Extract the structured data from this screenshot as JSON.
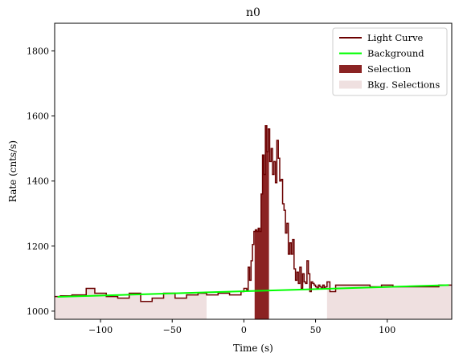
{
  "chart_data": {
    "type": "line",
    "title": "n0",
    "xlabel": "Time (s)",
    "ylabel": "Rate (cnts/s)",
    "xlim": [
      -132,
      145
    ],
    "ylim": [
      975,
      1885
    ],
    "xticks": [
      -100,
      -50,
      0,
      50,
      100
    ],
    "xtick_labels": [
      "−100",
      "−50",
      "0",
      "50",
      "100"
    ],
    "yticks": [
      1000,
      1200,
      1400,
      1600,
      1800
    ],
    "ytick_labels": [
      "1000",
      "1200",
      "1400",
      "1600",
      "1800"
    ],
    "grid": false,
    "legend_position": "top-right",
    "legend": [
      {
        "label": "Light Curve",
        "kind": "line",
        "color": "#6b0000"
      },
      {
        "label": "Background",
        "kind": "line",
        "color": "#00ff00"
      },
      {
        "label": "Selection",
        "kind": "patch",
        "color": "#8b2323"
      },
      {
        "label": "Bkg. Selections",
        "kind": "patch",
        "color": "#efe0e0"
      }
    ],
    "series": [
      {
        "name": "Light Curve",
        "color": "#6b0000",
        "x": [
          -132,
          -128,
          -120,
          -110,
          -104,
          -96,
          -88,
          -80,
          -72,
          -64,
          -56,
          -48,
          -40,
          -32,
          -26,
          -18,
          -10,
          -2,
          0,
          2,
          3,
          4,
          5,
          6,
          7,
          8,
          9,
          10,
          11,
          12,
          13,
          14,
          15,
          16,
          17,
          18,
          19,
          20,
          21,
          22,
          23,
          24,
          25,
          26,
          27,
          28,
          29,
          30,
          31,
          32,
          33,
          34,
          35,
          36,
          37,
          38,
          39,
          40,
          41,
          42,
          43,
          44,
          45,
          46,
          47,
          48,
          49,
          50,
          51,
          52,
          53,
          54,
          55,
          56,
          57,
          58,
          60,
          64,
          72,
          80,
          88,
          96,
          104,
          112,
          120,
          128,
          136,
          145
        ],
        "y": [
          1045,
          1047,
          1050,
          1070,
          1055,
          1045,
          1040,
          1055,
          1030,
          1040,
          1055,
          1040,
          1050,
          1055,
          1050,
          1055,
          1050,
          1060,
          1070,
          1065,
          1135,
          1095,
          1155,
          1205,
          1245,
          1250,
          1245,
          1255,
          1245,
          1360,
          1480,
          1420,
          1570,
          1490,
          1560,
          1460,
          1500,
          1420,
          1460,
          1395,
          1525,
          1470,
          1400,
          1405,
          1330,
          1310,
          1240,
          1270,
          1175,
          1210,
          1175,
          1220,
          1130,
          1095,
          1120,
          1085,
          1135,
          1070,
          1115,
          1090,
          1085,
          1155,
          1115,
          1060,
          1090,
          1085,
          1080,
          1075,
          1070,
          1080,
          1075,
          1070,
          1080,
          1070,
          1075,
          1090,
          1060,
          1080,
          1080,
          1080,
          1075,
          1080,
          1075,
          1075,
          1075,
          1075,
          1080,
          1080
        ]
      },
      {
        "name": "Background",
        "color": "#00ff00",
        "x": [
          -130,
          143
        ],
        "y": [
          1044,
          1080
        ]
      }
    ],
    "selection": {
      "label": "Selection",
      "x_range": [
        7.5,
        17.5
      ]
    },
    "bkg_selections": [
      {
        "label": "Bkg. Selections",
        "x_range": [
          -132,
          -26
        ]
      },
      {
        "label": "Bkg. Selections",
        "x_range": [
          58,
          145
        ]
      }
    ]
  }
}
